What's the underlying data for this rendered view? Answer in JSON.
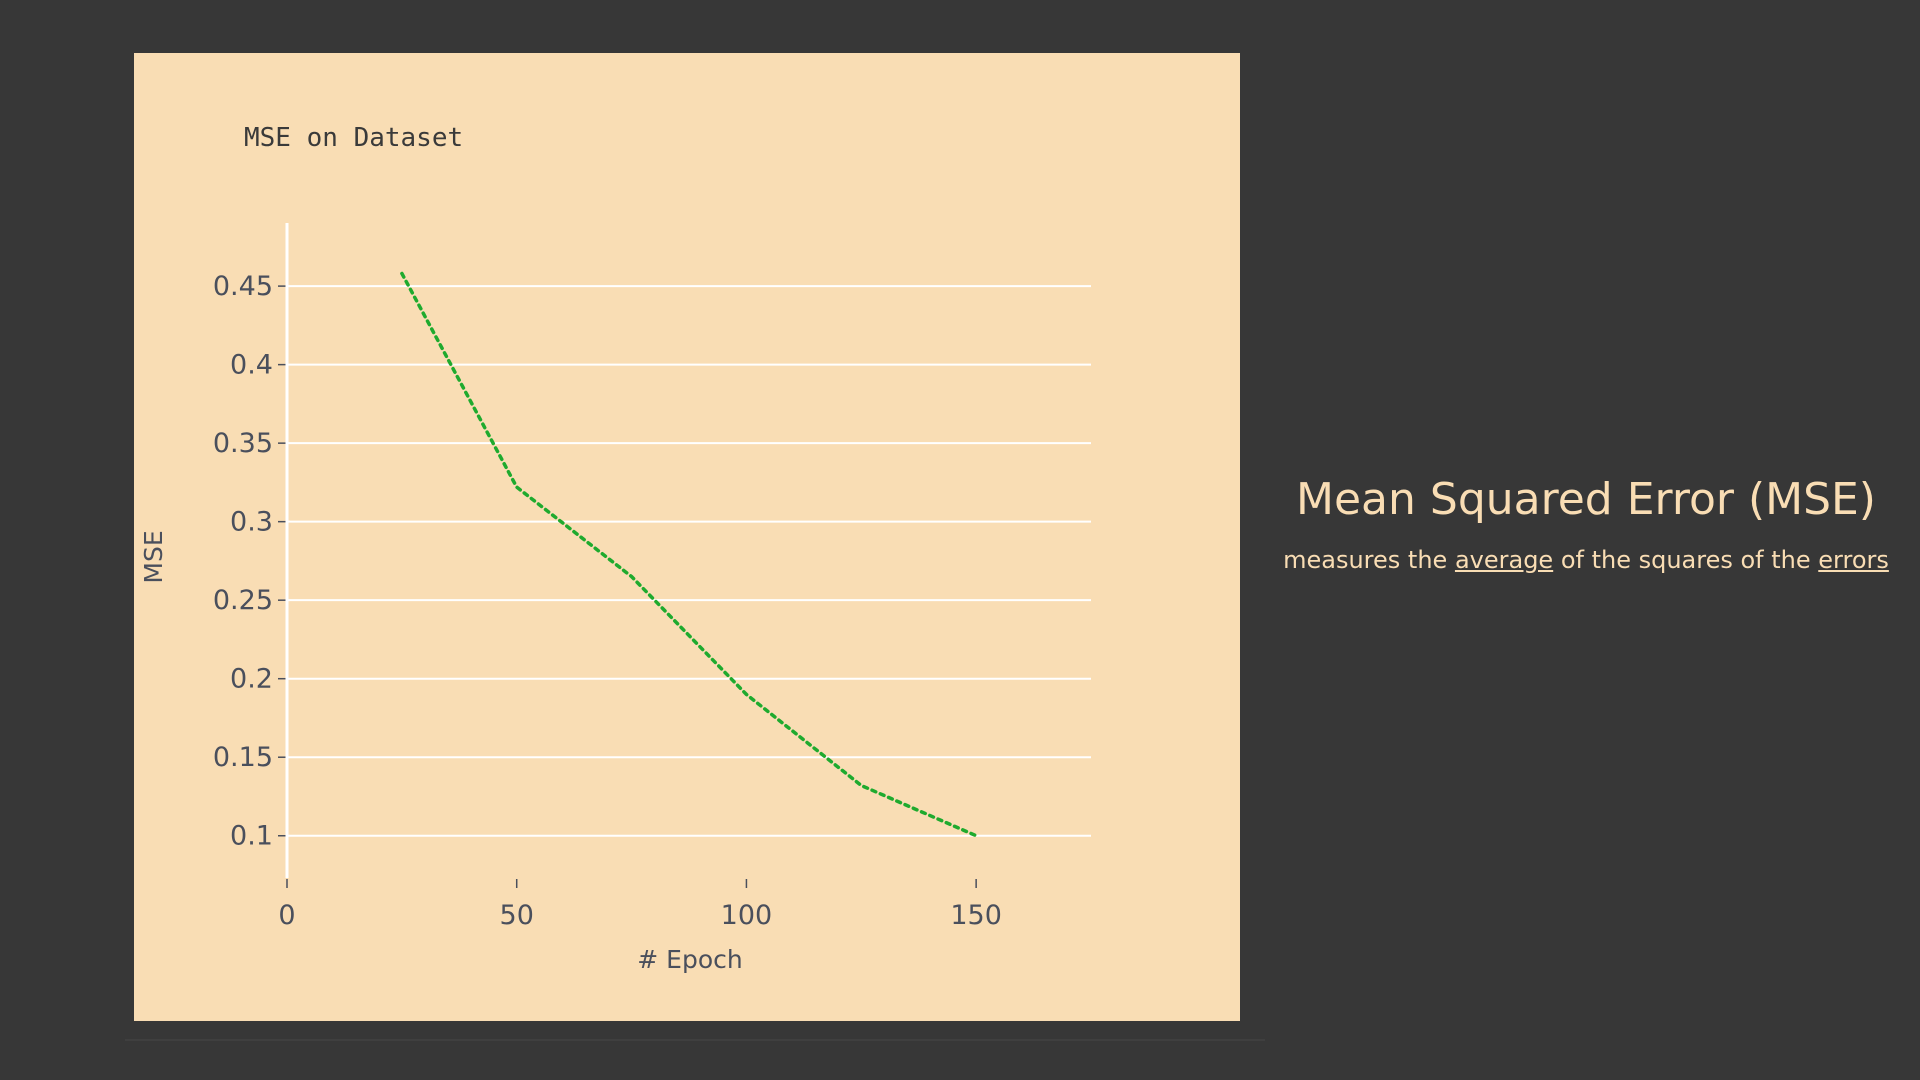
{
  "chart_data": {
    "type": "line",
    "title": "MSE on Dataset",
    "xlabel": "# Epoch",
    "ylabel": "MSE",
    "x": [
      25,
      50,
      75,
      100,
      125,
      150
    ],
    "series": [
      {
        "values": [
          0.458,
          0.322,
          0.265,
          0.19,
          0.132,
          0.1
        ]
      }
    ],
    "xlim": [
      0,
      175
    ],
    "ylim": [
      0.075,
      0.48
    ],
    "xticks": [
      0,
      50,
      100,
      150
    ],
    "yticks": [
      0.1,
      0.15,
      0.2,
      0.25,
      0.3,
      0.35,
      0.4,
      0.45
    ],
    "grid": true,
    "line_style": "dotted",
    "line_color": "#1faa2e",
    "background_color": "#f9ddb4",
    "grid_color": "#ffffff"
  },
  "info": {
    "title": "Mean Squared Error (MSE)",
    "text_parts": {
      "prefix": "measures the ",
      "link1": "average",
      "middle": " of the squares of the ",
      "link2": "errors"
    }
  }
}
